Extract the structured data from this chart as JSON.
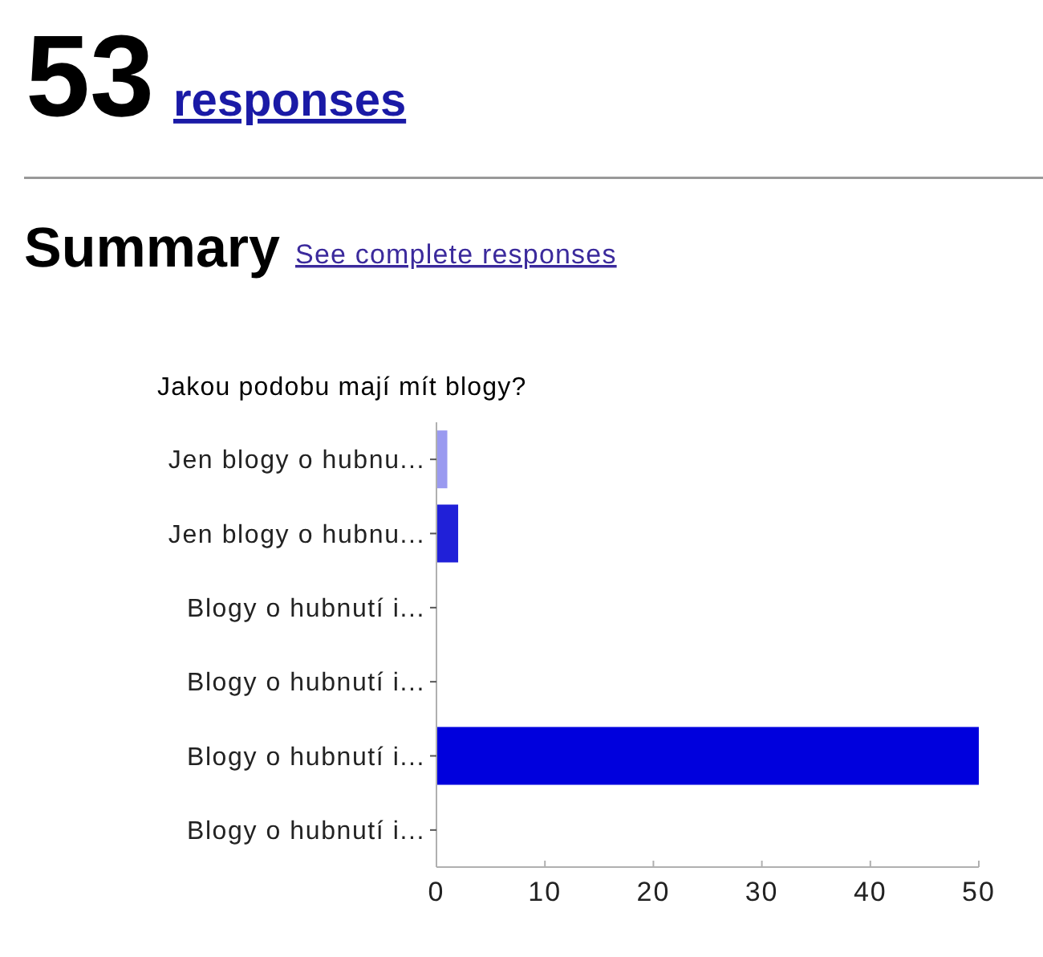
{
  "chart_data": {
    "type": "bar",
    "orientation": "horizontal",
    "title": "Jakou podobu mají mít blogy?",
    "annotations": [
      "53",
      "responses",
      "Summary",
      "See complete responses"
    ],
    "categories": [
      "Jen blogy o hubnu...",
      "Jen blogy o hubnu...",
      "Blogy o hubnutí i...",
      "Blogy o hubnutí i...",
      "Blogy o hubnutí i...",
      "Blogy o hubnutí i..."
    ],
    "values": [
      1,
      2,
      0,
      0,
      50,
      0
    ],
    "colors": [
      "#9a9af0",
      "#2020d8",
      "#0000dd",
      "#0000dd",
      "#0000dd",
      "#0000dd"
    ],
    "xlim": [
      0,
      50
    ],
    "xticks": [
      0,
      10,
      20,
      30,
      40,
      50
    ]
  }
}
